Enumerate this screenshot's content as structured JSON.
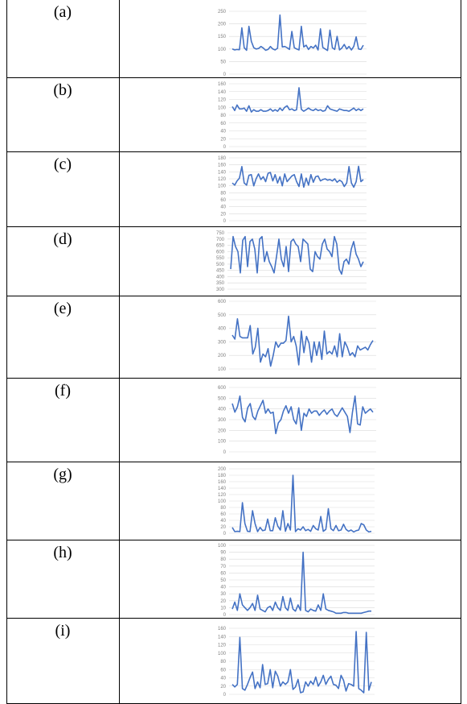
{
  "panels": [
    {
      "label": "(a)"
    },
    {
      "label": "(b)"
    },
    {
      "label": "(c)"
    },
    {
      "label": "(d)"
    },
    {
      "label": "(e)"
    },
    {
      "label": "(f)"
    },
    {
      "label": "(g)"
    },
    {
      "label": "(h)"
    },
    {
      "label": "(i)"
    }
  ],
  "colors": {
    "line": "#4472c4",
    "grid": "#d9d9d9",
    "tick": "#7f7f7f",
    "border": "#000000"
  },
  "chart_data": [
    {
      "type": "line",
      "ylim": [
        0,
        250
      ],
      "yticks": [
        "0",
        "50",
        "100",
        "150",
        "200",
        "250"
      ],
      "values": [
        100,
        96,
        98,
        97,
        184,
        105,
        95,
        190,
        130,
        105,
        100,
        102,
        110,
        104,
        95,
        98,
        110,
        100,
        96,
        103,
        235,
        108,
        110,
        105,
        98,
        170,
        105,
        100,
        96,
        190,
        108,
        115,
        98,
        110,
        104,
        115,
        96,
        180,
        106,
        100,
        94,
        175,
        105,
        98,
        150,
        96,
        104,
        118,
        100,
        110,
        96,
        110,
        148,
        100,
        98,
        115
      ]
    },
    {
      "type": "line",
      "ylim": [
        0,
        160
      ],
      "yticks": [
        "0",
        "20",
        "40",
        "60",
        "80",
        "100",
        "120",
        "140",
        "160"
      ],
      "values": [
        102,
        92,
        106,
        96,
        96,
        98,
        90,
        104,
        88,
        94,
        90,
        90,
        94,
        90,
        90,
        92,
        96,
        90,
        94,
        90,
        98,
        92,
        100,
        104,
        94,
        96,
        92,
        94,
        150,
        95,
        90,
        94,
        98,
        94,
        92,
        96,
        92,
        94,
        90,
        92,
        104,
        96,
        94,
        92,
        90,
        96,
        94,
        92,
        92,
        90,
        94,
        98,
        92,
        96,
        92,
        96
      ]
    },
    {
      "type": "line",
      "ylim": [
        0,
        180
      ],
      "yticks": [
        "0",
        "20",
        "40",
        "60",
        "80",
        "100",
        "120",
        "140",
        "160",
        "180"
      ],
      "values": [
        108,
        102,
        114,
        122,
        155,
        108,
        102,
        130,
        132,
        100,
        120,
        134,
        118,
        126,
        112,
        136,
        138,
        114,
        132,
        108,
        126,
        100,
        134,
        112,
        120,
        128,
        132,
        112,
        98,
        134,
        96,
        122,
        102,
        132,
        110,
        126,
        128,
        114,
        118,
        120,
        116,
        118,
        114,
        120,
        110,
        116,
        112,
        98,
        108,
        155,
        108,
        96,
        112,
        156,
        112,
        118
      ]
    },
    {
      "type": "line",
      "ylim": [
        300,
        750
      ],
      "yticks": [
        "300",
        "350",
        "400",
        "450",
        "500",
        "550",
        "600",
        "650",
        "700",
        "750"
      ],
      "values": [
        460,
        720,
        640,
        600,
        430,
        690,
        720,
        480,
        680,
        700,
        620,
        430,
        700,
        720,
        520,
        600,
        520,
        480,
        430,
        560,
        700,
        540,
        480,
        640,
        440,
        680,
        700,
        660,
        640,
        520,
        700,
        680,
        660,
        460,
        440,
        600,
        560,
        540,
        660,
        700,
        620,
        600,
        560,
        720,
        660,
        460,
        420,
        520,
        540,
        500,
        620,
        680,
        580,
        540,
        480,
        520
      ]
    },
    {
      "type": "line",
      "ylim": [
        100,
        600
      ],
      "yticks": [
        "100",
        "200",
        "300",
        "400",
        "500",
        "600"
      ],
      "values": [
        350,
        320,
        470,
        340,
        330,
        330,
        330,
        420,
        210,
        260,
        400,
        150,
        210,
        190,
        250,
        120,
        200,
        300,
        260,
        290,
        290,
        310,
        490,
        300,
        340,
        270,
        130,
        380,
        220,
        340,
        290,
        150,
        300,
        200,
        300,
        170,
        380,
        210,
        230,
        210,
        270,
        190,
        360,
        190,
        300,
        260,
        200,
        220,
        190,
        270,
        240,
        250,
        260,
        240,
        280,
        310
      ]
    },
    {
      "type": "line",
      "ylim": [
        0,
        600
      ],
      "yticks": [
        "0",
        "100",
        "200",
        "300",
        "400",
        "500",
        "600"
      ],
      "values": [
        450,
        370,
        420,
        520,
        320,
        280,
        410,
        450,
        330,
        300,
        380,
        430,
        480,
        360,
        400,
        360,
        370,
        170,
        270,
        300,
        380,
        430,
        360,
        420,
        300,
        260,
        410,
        200,
        360,
        330,
        400,
        360,
        380,
        380,
        340,
        370,
        390,
        350,
        380,
        400,
        350,
        330,
        370,
        410,
        370,
        330,
        180,
        370,
        520,
        260,
        250,
        420,
        360,
        380,
        400,
        370
      ]
    },
    {
      "type": "line",
      "ylim": [
        0,
        200
      ],
      "yticks": [
        "0",
        "20",
        "40",
        "60",
        "80",
        "100",
        "120",
        "140",
        "160",
        "180",
        "200"
      ],
      "values": [
        18,
        5,
        6,
        5,
        95,
        30,
        6,
        5,
        70,
        30,
        5,
        18,
        8,
        10,
        44,
        8,
        8,
        48,
        22,
        10,
        70,
        6,
        30,
        10,
        180,
        5,
        14,
        10,
        20,
        8,
        12,
        6,
        24,
        14,
        10,
        52,
        6,
        12,
        76,
        14,
        8,
        24,
        8,
        10,
        28,
        12,
        6,
        10,
        4,
        8,
        10,
        30,
        26,
        10,
        4,
        6
      ]
    },
    {
      "type": "line",
      "ylim": [
        0,
        100
      ],
      "yticks": [
        "0",
        "10",
        "20",
        "30",
        "40",
        "50",
        "60",
        "70",
        "80",
        "90",
        "100"
      ],
      "values": [
        8,
        18,
        6,
        30,
        14,
        10,
        6,
        10,
        16,
        6,
        28,
        8,
        6,
        4,
        10,
        12,
        6,
        18,
        10,
        6,
        26,
        10,
        6,
        24,
        8,
        5,
        14,
        6,
        90,
        6,
        4,
        8,
        6,
        5,
        14,
        6,
        30,
        8,
        6,
        5,
        4,
        2,
        2,
        2,
        3,
        3,
        2,
        2,
        2,
        2,
        2,
        2,
        3,
        4,
        5,
        5
      ]
    },
    {
      "type": "line",
      "ylim": [
        0,
        160
      ],
      "yticks": [
        "0",
        "20",
        "40",
        "60",
        "80",
        "100",
        "120",
        "140",
        "160"
      ],
      "values": [
        24,
        18,
        24,
        138,
        14,
        10,
        24,
        40,
        54,
        14,
        30,
        16,
        72,
        24,
        26,
        60,
        16,
        56,
        44,
        20,
        30,
        24,
        30,
        60,
        12,
        18,
        36,
        4,
        6,
        30,
        20,
        32,
        24,
        42,
        20,
        30,
        46,
        24,
        36,
        44,
        24,
        22,
        14,
        46,
        34,
        8,
        26,
        24,
        20,
        152,
        14,
        10,
        4,
        150,
        10,
        30
      ]
    }
  ]
}
